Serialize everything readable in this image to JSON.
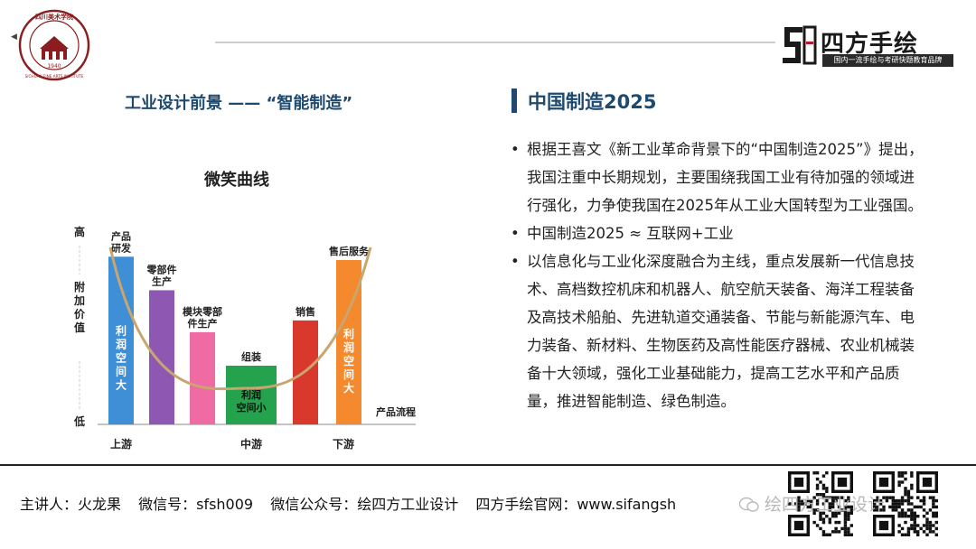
{
  "header": {
    "logo_text_top": "四川美术学院",
    "logo_text_ring": "SICHUAN FINE ARTS INSTITUTE",
    "logo_year": "1940",
    "brand_name": "四方手绘",
    "brand_slogan": "国内一流手绘与考研快题教育品牌"
  },
  "left_heading": "工业设计前景 —— “智能制造”",
  "chart_data": {
    "type": "bar",
    "title": "微笑曲线",
    "ylabel_top": "高",
    "ylabel_mid": "附加价值",
    "ylabel_bottom": "低",
    "xlabel": "产品流程",
    "stage_labels": [
      "上游",
      "中游",
      "下游"
    ],
    "categories": [
      "产品研发",
      "零部件生产",
      "模块零部件生产",
      "组装",
      "销售",
      "售后服务"
    ],
    "values": [
      100,
      80,
      55,
      35,
      62,
      98
    ],
    "ylim": [
      0,
      105
    ],
    "bar_colors": [
      "#3f8fd6",
      "#8e58b2",
      "#f06aa3",
      "#25a24d",
      "#d9382c",
      "#f5892e"
    ],
    "bar_annotations": [
      "利润空间大",
      "",
      "",
      "利润空间小",
      "",
      "利润空间大"
    ],
    "curve": "smile"
  },
  "right_heading": "中国制造2025",
  "bullets": [
    "根据王喜文《新工业革命背景下的“中国制造2025”》提出，我国注重中长期规划，主要围绕我国工业有待加强的领域进行强化，力争使我国在2025年从工业大国转型为工业强国。",
    "中国制造2025 ≈ 互联网+工业",
    "以信息化与工业化深度融合为主线，重点发展新一代信息技术、高档数控机床和机器人、航空航天装备、海洋工程装备及高技术船舶、先进轨道交通装备、节能与新能源汽车、电力装备、新材料、生物医药及高性能医疗器械、农业机械装备十大领域，强化工业基础能力，提高工艺水平和产品质量，推进智能制造、绿色制造。"
  ],
  "bullet_symbol": "•",
  "footer": {
    "speaker": "主讲人：火龙果",
    "wechat": "微信号：sfsh009",
    "public_account": "微信公众号：绘四方工业设计",
    "website": "四方手绘官网：www.sifangsh",
    "watermark": "绘四方工业设计"
  }
}
